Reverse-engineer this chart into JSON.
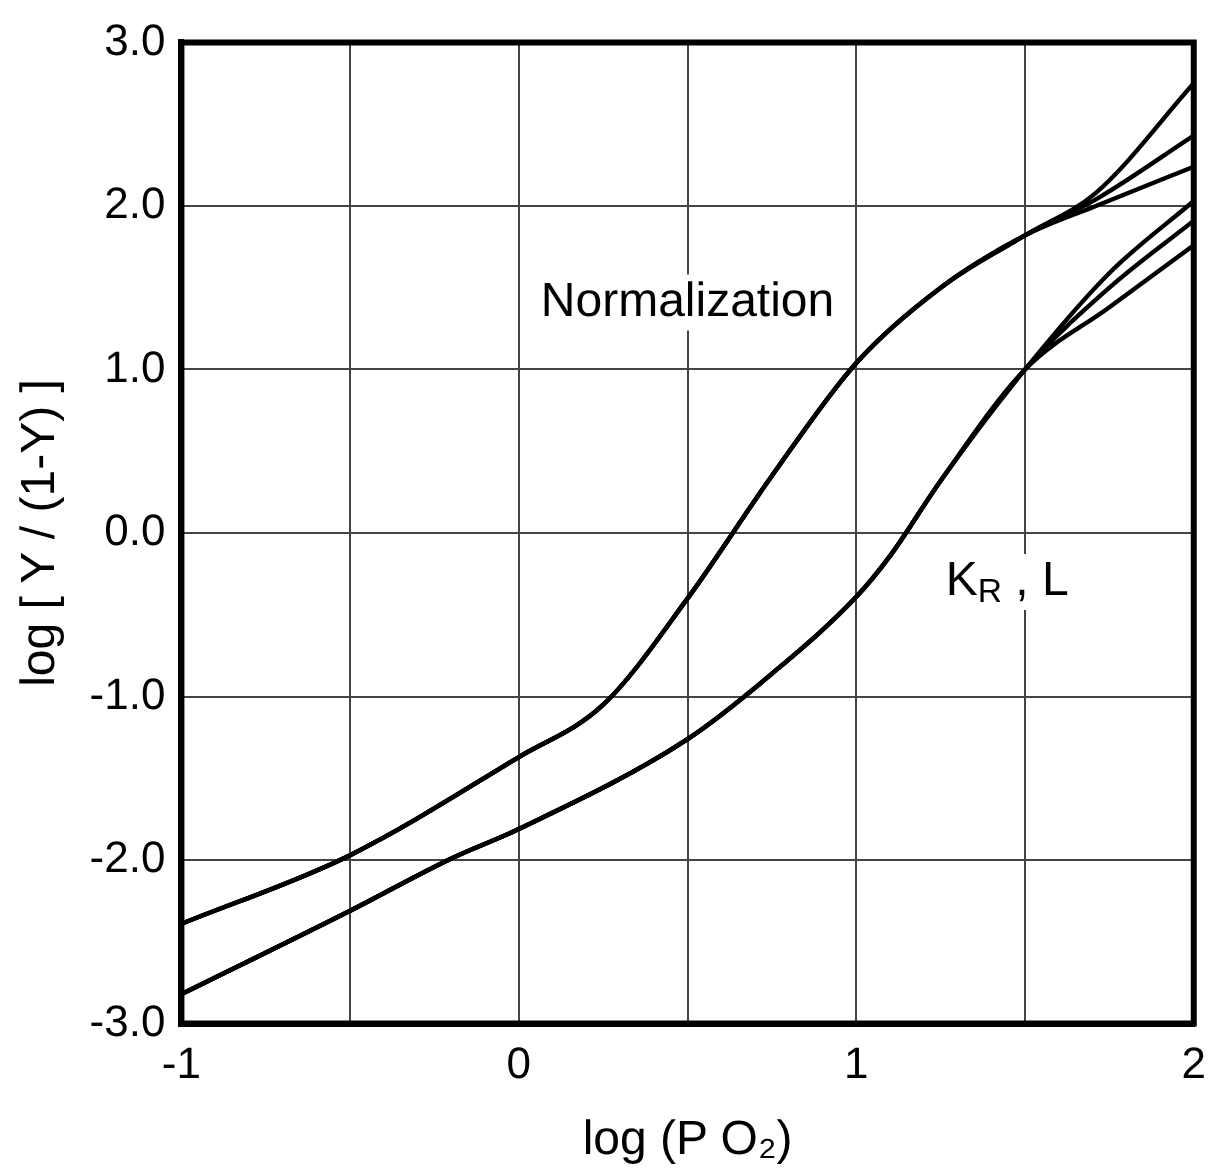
{
  "chart_data": {
    "type": "line",
    "xlabel": "log (P O₂)",
    "ylabel": "log [ Y / (1-Y) ]",
    "xlim": [
      -1,
      2
    ],
    "ylim": [
      -3,
      3
    ],
    "xticks": [
      -1,
      {
        "value": -0.5,
        "label": null
      },
      0,
      {
        "value": 0.5,
        "label": null
      },
      1,
      {
        "value": 1.5,
        "label": null
      },
      2
    ],
    "yticks": [
      {
        "value": -3,
        "label": "-3.0"
      },
      {
        "value": -2,
        "label": "-2.0"
      },
      {
        "value": -1,
        "label": "-1.0"
      },
      {
        "value": 0,
        "label": "0.0"
      },
      {
        "value": 1,
        "label": "1.0"
      },
      {
        "value": 2,
        "label": "2.0"
      },
      {
        "value": 3,
        "label": "3.0"
      }
    ],
    "grid": true,
    "legend": false,
    "marker": "none",
    "line_style": "solid",
    "series": [
      {
        "color": "#000000",
        "x": [
          -1,
          -0.5,
          0,
          0.25,
          0.5,
          0.75,
          1,
          1.25,
          1.5,
          1.71,
          2
        ],
        "values": [
          -2.39,
          -1.97,
          -1.37,
          -1.05,
          -0.4,
          0.35,
          1.04,
          1.5,
          1.82,
          2.08,
          2.75
        ]
      },
      {
        "color": "#000000",
        "x": [
          -1,
          -0.5,
          0,
          0.25,
          0.5,
          0.75,
          1,
          1.25,
          1.5,
          1.71,
          2
        ],
        "values": [
          -2.39,
          -1.97,
          -1.37,
          -1.05,
          -0.4,
          0.35,
          1.04,
          1.5,
          1.82,
          2.04,
          2.43
        ]
      },
      {
        "color": "#000000",
        "x": [
          -1,
          -0.5,
          0,
          0.25,
          0.5,
          0.75,
          1,
          1.25,
          1.5,
          1.71,
          2
        ],
        "values": [
          -2.39,
          -1.97,
          -1.37,
          -1.05,
          -0.4,
          0.35,
          1.04,
          1.5,
          1.82,
          2.0,
          2.24
        ]
      },
      {
        "color": "#000000",
        "x": [
          -1,
          -0.5,
          -0.2,
          0,
          0.5,
          0.75,
          1,
          1.1,
          1.25,
          1.5,
          1.75,
          2
        ],
        "values": [
          -2.82,
          -2.31,
          -1.99,
          -1.81,
          -1.26,
          -0.86,
          -0.39,
          -0.14,
          0.32,
          1.0,
          1.59,
          2.03
        ]
      },
      {
        "color": "#000000",
        "x": [
          -1,
          -0.5,
          -0.2,
          0,
          0.5,
          0.75,
          1,
          1.1,
          1.25,
          1.5,
          1.75,
          2
        ],
        "values": [
          -2.82,
          -2.31,
          -1.99,
          -1.81,
          -1.26,
          -0.86,
          -0.39,
          -0.14,
          0.32,
          1.0,
          1.5,
          1.91
        ]
      },
      {
        "color": "#000000",
        "x": [
          -1,
          -0.5,
          -0.2,
          0,
          0.5,
          0.75,
          1,
          1.1,
          1.25,
          1.5,
          1.75,
          2
        ],
        "values": [
          -2.82,
          -2.31,
          -1.99,
          -1.81,
          -1.26,
          -0.86,
          -0.39,
          -0.14,
          0.32,
          1.0,
          1.38,
          1.76
        ]
      }
    ],
    "annotations": [
      "Normalization",
      "K$_{R}$ , L"
    ]
  }
}
